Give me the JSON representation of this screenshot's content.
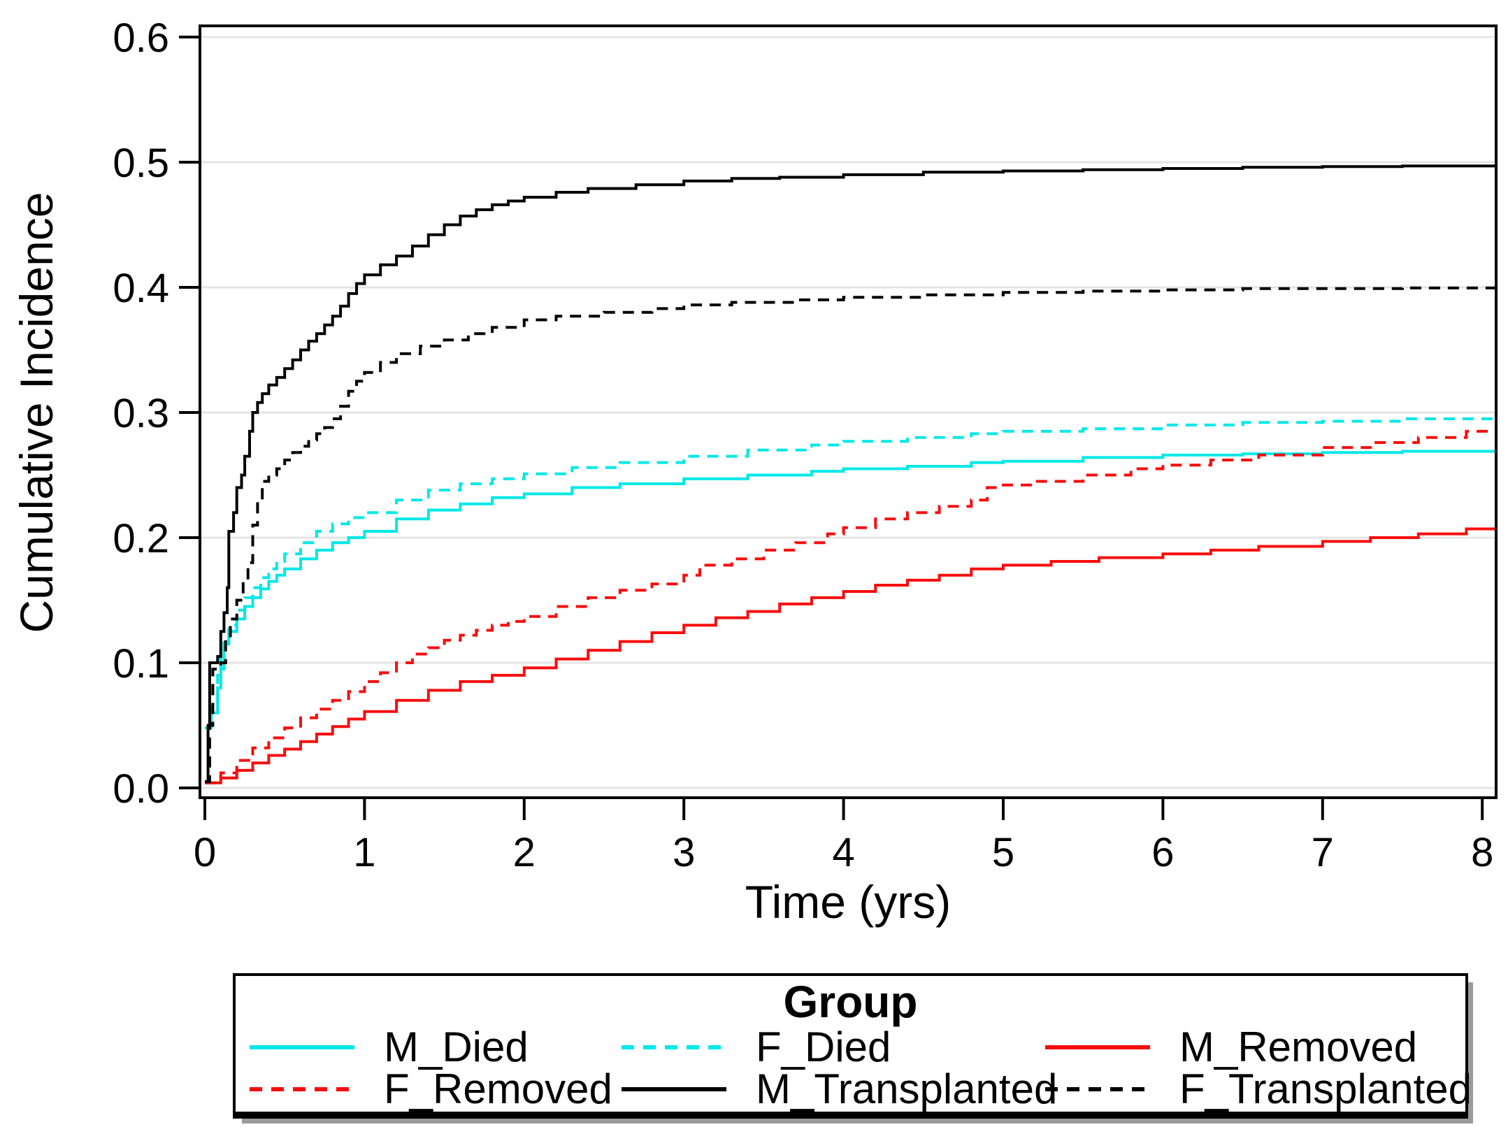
{
  "chart_data": {
    "type": "line",
    "subtype": "cumulative-incidence-step-curves",
    "title": "",
    "xlabel": "Time (yrs)",
    "ylabel": "Cumulative Incidence",
    "xlim": [
      0,
      8
    ],
    "ylim": [
      0.0,
      0.6
    ],
    "x_tick_labels": [
      "0",
      "1",
      "2",
      "3",
      "4",
      "5",
      "6",
      "7",
      "8"
    ],
    "x_tick_values": [
      0,
      1,
      2,
      3,
      4,
      5,
      6,
      7,
      8
    ],
    "y_tick_labels": [
      "0.0",
      "0.1",
      "0.2",
      "0.3",
      "0.4",
      "0.5",
      "0.6"
    ],
    "y_tick_values": [
      0.0,
      0.1,
      0.2,
      0.3,
      0.4,
      0.5,
      0.6
    ],
    "grid": "horizontal",
    "gridline_color": "#e4e4e4",
    "frame_color": "#000000",
    "legend_title": "Group",
    "legend_position": "bottom",
    "series": [
      {
        "name": "M_Died",
        "color": "#00e8e8",
        "line_style": "solid",
        "points": [
          [
            0,
            0.048
          ],
          [
            0.04,
            0.06
          ],
          [
            0.08,
            0.08
          ],
          [
            0.1,
            0.095
          ],
          [
            0.12,
            0.115
          ],
          [
            0.15,
            0.125
          ],
          [
            0.2,
            0.135
          ],
          [
            0.25,
            0.145
          ],
          [
            0.3,
            0.152
          ],
          [
            0.35,
            0.159
          ],
          [
            0.4,
            0.165
          ],
          [
            0.45,
            0.17
          ],
          [
            0.5,
            0.175
          ],
          [
            0.6,
            0.183
          ],
          [
            0.7,
            0.19
          ],
          [
            0.8,
            0.196
          ],
          [
            0.9,
            0.2
          ],
          [
            1.0,
            0.205
          ],
          [
            1.2,
            0.215
          ],
          [
            1.4,
            0.222
          ],
          [
            1.6,
            0.227
          ],
          [
            1.8,
            0.232
          ],
          [
            2.0,
            0.235
          ],
          [
            2.3,
            0.24
          ],
          [
            2.6,
            0.243
          ],
          [
            3.0,
            0.247
          ],
          [
            3.4,
            0.25
          ],
          [
            3.8,
            0.253
          ],
          [
            4.0,
            0.255
          ],
          [
            4.4,
            0.257
          ],
          [
            4.8,
            0.26
          ],
          [
            5.0,
            0.261
          ],
          [
            5.5,
            0.264
          ],
          [
            6.0,
            0.266
          ],
          [
            6.5,
            0.267
          ],
          [
            7.0,
            0.268
          ],
          [
            7.5,
            0.269
          ],
          [
            8.09,
            0.27
          ]
        ]
      },
      {
        "name": "F_Died",
        "color": "#00e8e8",
        "line_style": "dash",
        "points": [
          [
            0,
            0.048
          ],
          [
            0.04,
            0.065
          ],
          [
            0.08,
            0.09
          ],
          [
            0.1,
            0.105
          ],
          [
            0.12,
            0.12
          ],
          [
            0.15,
            0.13
          ],
          [
            0.2,
            0.142
          ],
          [
            0.25,
            0.152
          ],
          [
            0.3,
            0.16
          ],
          [
            0.35,
            0.168
          ],
          [
            0.4,
            0.175
          ],
          [
            0.45,
            0.181
          ],
          [
            0.5,
            0.187
          ],
          [
            0.6,
            0.196
          ],
          [
            0.7,
            0.205
          ],
          [
            0.8,
            0.211
          ],
          [
            0.9,
            0.216
          ],
          [
            1.0,
            0.22
          ],
          [
            1.2,
            0.23
          ],
          [
            1.4,
            0.238
          ],
          [
            1.6,
            0.243
          ],
          [
            1.8,
            0.247
          ],
          [
            2.0,
            0.251
          ],
          [
            2.3,
            0.256
          ],
          [
            2.6,
            0.26
          ],
          [
            3.0,
            0.265
          ],
          [
            3.4,
            0.27
          ],
          [
            3.8,
            0.274
          ],
          [
            4.0,
            0.277
          ],
          [
            4.4,
            0.28
          ],
          [
            4.8,
            0.283
          ],
          [
            5.0,
            0.285
          ],
          [
            5.5,
            0.287
          ],
          [
            6.0,
            0.29
          ],
          [
            6.5,
            0.292
          ],
          [
            7.0,
            0.293
          ],
          [
            7.5,
            0.295
          ],
          [
            8.09,
            0.297
          ]
        ]
      },
      {
        "name": "M_Removed",
        "color": "#f80d0d",
        "line_style": "solid",
        "points": [
          [
            0,
            0.004
          ],
          [
            0.1,
            0.008
          ],
          [
            0.2,
            0.014
          ],
          [
            0.3,
            0.02
          ],
          [
            0.4,
            0.026
          ],
          [
            0.5,
            0.031
          ],
          [
            0.6,
            0.037
          ],
          [
            0.7,
            0.043
          ],
          [
            0.8,
            0.049
          ],
          [
            0.9,
            0.055
          ],
          [
            1.0,
            0.061
          ],
          [
            1.2,
            0.07
          ],
          [
            1.4,
            0.078
          ],
          [
            1.6,
            0.085
          ],
          [
            1.8,
            0.09
          ],
          [
            2.0,
            0.096
          ],
          [
            2.2,
            0.103
          ],
          [
            2.4,
            0.11
          ],
          [
            2.6,
            0.117
          ],
          [
            2.8,
            0.124
          ],
          [
            3.0,
            0.13
          ],
          [
            3.2,
            0.136
          ],
          [
            3.4,
            0.141
          ],
          [
            3.6,
            0.147
          ],
          [
            3.8,
            0.152
          ],
          [
            4.0,
            0.157
          ],
          [
            4.2,
            0.162
          ],
          [
            4.4,
            0.166
          ],
          [
            4.6,
            0.17
          ],
          [
            4.8,
            0.175
          ],
          [
            5.0,
            0.178
          ],
          [
            5.3,
            0.181
          ],
          [
            5.6,
            0.184
          ],
          [
            6.0,
            0.187
          ],
          [
            6.3,
            0.19
          ],
          [
            6.6,
            0.193
          ],
          [
            7.0,
            0.197
          ],
          [
            7.3,
            0.2
          ],
          [
            7.6,
            0.203
          ],
          [
            7.9,
            0.207
          ],
          [
            8.09,
            0.21
          ]
        ]
      },
      {
        "name": "F_Removed",
        "color": "#f80d0d",
        "line_style": "dash",
        "points": [
          [
            0,
            0.004
          ],
          [
            0.1,
            0.012
          ],
          [
            0.2,
            0.022
          ],
          [
            0.3,
            0.032
          ],
          [
            0.4,
            0.04
          ],
          [
            0.5,
            0.048
          ],
          [
            0.6,
            0.056
          ],
          [
            0.7,
            0.063
          ],
          [
            0.8,
            0.07
          ],
          [
            0.9,
            0.077
          ],
          [
            1.0,
            0.085
          ],
          [
            1.1,
            0.092
          ],
          [
            1.2,
            0.1
          ],
          [
            1.3,
            0.107
          ],
          [
            1.4,
            0.112
          ],
          [
            1.5,
            0.118
          ],
          [
            1.6,
            0.122
          ],
          [
            1.7,
            0.126
          ],
          [
            1.8,
            0.13
          ],
          [
            1.9,
            0.133
          ],
          [
            2.0,
            0.137
          ],
          [
            2.2,
            0.145
          ],
          [
            2.4,
            0.152
          ],
          [
            2.6,
            0.158
          ],
          [
            2.8,
            0.163
          ],
          [
            3.0,
            0.17
          ],
          [
            3.1,
            0.178
          ],
          [
            3.3,
            0.183
          ],
          [
            3.5,
            0.19
          ],
          [
            3.7,
            0.196
          ],
          [
            3.9,
            0.203
          ],
          [
            4.0,
            0.208
          ],
          [
            4.2,
            0.215
          ],
          [
            4.4,
            0.22
          ],
          [
            4.6,
            0.225
          ],
          [
            4.8,
            0.23
          ],
          [
            4.9,
            0.24
          ],
          [
            5.0,
            0.242
          ],
          [
            5.2,
            0.245
          ],
          [
            5.5,
            0.25
          ],
          [
            5.8,
            0.255
          ],
          [
            6.0,
            0.258
          ],
          [
            6.3,
            0.262
          ],
          [
            6.6,
            0.266
          ],
          [
            7.0,
            0.272
          ],
          [
            7.3,
            0.276
          ],
          [
            7.6,
            0.28
          ],
          [
            7.9,
            0.285
          ],
          [
            8.09,
            0.29
          ]
        ]
      },
      {
        "name": "M_Transplanted",
        "color": "#000000",
        "line_style": "solid",
        "points": [
          [
            0,
            0.005
          ],
          [
            0.02,
            0.05
          ],
          [
            0.03,
            0.1
          ],
          [
            0.08,
            0.105
          ],
          [
            0.1,
            0.125
          ],
          [
            0.12,
            0.14
          ],
          [
            0.14,
            0.16
          ],
          [
            0.15,
            0.205
          ],
          [
            0.18,
            0.22
          ],
          [
            0.2,
            0.24
          ],
          [
            0.23,
            0.25
          ],
          [
            0.25,
            0.265
          ],
          [
            0.28,
            0.285
          ],
          [
            0.3,
            0.3
          ],
          [
            0.33,
            0.308
          ],
          [
            0.36,
            0.315
          ],
          [
            0.4,
            0.322
          ],
          [
            0.45,
            0.328
          ],
          [
            0.5,
            0.335
          ],
          [
            0.55,
            0.342
          ],
          [
            0.6,
            0.35
          ],
          [
            0.65,
            0.357
          ],
          [
            0.7,
            0.363
          ],
          [
            0.75,
            0.37
          ],
          [
            0.8,
            0.377
          ],
          [
            0.85,
            0.385
          ],
          [
            0.9,
            0.395
          ],
          [
            0.95,
            0.403
          ],
          [
            1.0,
            0.41
          ],
          [
            1.1,
            0.418
          ],
          [
            1.2,
            0.425
          ],
          [
            1.3,
            0.433
          ],
          [
            1.4,
            0.442
          ],
          [
            1.5,
            0.45
          ],
          [
            1.6,
            0.457
          ],
          [
            1.7,
            0.462
          ],
          [
            1.8,
            0.466
          ],
          [
            1.9,
            0.469
          ],
          [
            2.0,
            0.472
          ],
          [
            2.2,
            0.476
          ],
          [
            2.4,
            0.479
          ],
          [
            2.7,
            0.482
          ],
          [
            3.0,
            0.485
          ],
          [
            3.3,
            0.487
          ],
          [
            3.6,
            0.488
          ],
          [
            4.0,
            0.49
          ],
          [
            4.5,
            0.492
          ],
          [
            5.0,
            0.493
          ],
          [
            5.5,
            0.494
          ],
          [
            6.0,
            0.495
          ],
          [
            6.5,
            0.496
          ],
          [
            7.0,
            0.4965
          ],
          [
            7.5,
            0.497
          ],
          [
            8.09,
            0.4975
          ]
        ]
      },
      {
        "name": "F_Transplanted",
        "color": "#000000",
        "line_style": "dash",
        "points": [
          [
            0,
            0.005
          ],
          [
            0.03,
            0.05
          ],
          [
            0.05,
            0.095
          ],
          [
            0.1,
            0.1
          ],
          [
            0.13,
            0.12
          ],
          [
            0.16,
            0.135
          ],
          [
            0.2,
            0.15
          ],
          [
            0.24,
            0.165
          ],
          [
            0.27,
            0.18
          ],
          [
            0.3,
            0.21
          ],
          [
            0.33,
            0.23
          ],
          [
            0.36,
            0.245
          ],
          [
            0.4,
            0.25
          ],
          [
            0.45,
            0.255
          ],
          [
            0.5,
            0.262
          ],
          [
            0.55,
            0.268
          ],
          [
            0.6,
            0.273
          ],
          [
            0.65,
            0.278
          ],
          [
            0.7,
            0.283
          ],
          [
            0.75,
            0.288
          ],
          [
            0.8,
            0.295
          ],
          [
            0.85,
            0.305
          ],
          [
            0.9,
            0.317
          ],
          [
            0.95,
            0.325
          ],
          [
            1.0,
            0.332
          ],
          [
            1.1,
            0.34
          ],
          [
            1.2,
            0.347
          ],
          [
            1.35,
            0.353
          ],
          [
            1.5,
            0.358
          ],
          [
            1.65,
            0.363
          ],
          [
            1.8,
            0.368
          ],
          [
            2.0,
            0.374
          ],
          [
            2.2,
            0.377
          ],
          [
            2.5,
            0.38
          ],
          [
            2.8,
            0.383
          ],
          [
            3.0,
            0.386
          ],
          [
            3.3,
            0.388
          ],
          [
            3.7,
            0.39
          ],
          [
            4.0,
            0.392
          ],
          [
            4.5,
            0.394
          ],
          [
            5.0,
            0.396
          ],
          [
            5.5,
            0.397
          ],
          [
            6.0,
            0.398
          ],
          [
            6.5,
            0.399
          ],
          [
            7.5,
            0.3995
          ],
          [
            8.09,
            0.4
          ]
        ]
      }
    ],
    "legend_order": [
      "M_Died",
      "F_Died",
      "M_Removed",
      "F_Removed",
      "M_Transplanted",
      "F_Transplanted"
    ]
  }
}
